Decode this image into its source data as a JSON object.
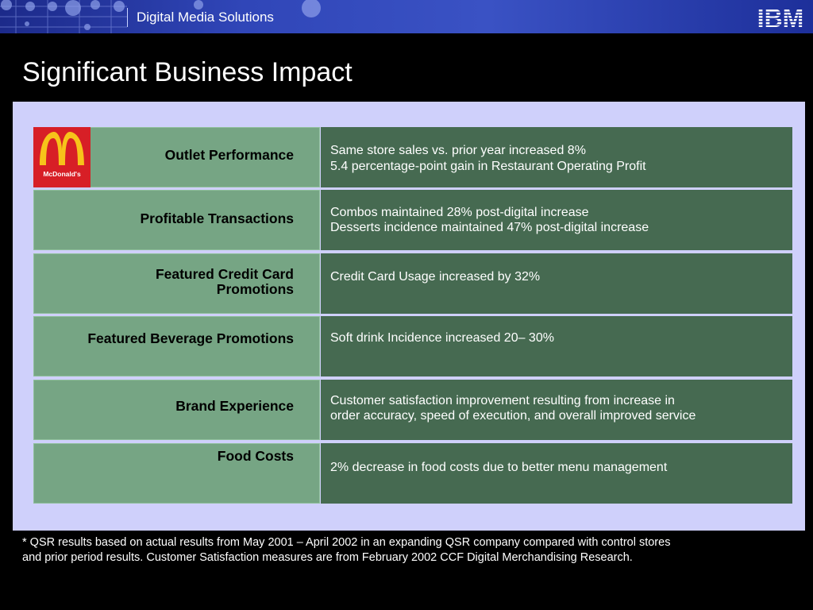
{
  "header": {
    "brand": "Digital Media Solutions",
    "logo_text": "IBM"
  },
  "slide": {
    "title": "Significant Business Impact"
  },
  "rows": [
    {
      "label": [
        "Outlet Performance"
      ],
      "desc": [
        "Same store sales vs. prior year increased 8%",
        "5.4 percentage-point gain in Restaurant Operating Profit"
      ]
    },
    {
      "label": [
        "Profitable Transactions"
      ],
      "desc": [
        "Combos maintained 28% post-digital increase",
        "Desserts incidence maintained 47% post-digital increase"
      ]
    },
    {
      "label": [
        "Featured Credit Card",
        "Promotions"
      ],
      "desc": [
        "Credit Card Usage increased by 32%"
      ]
    },
    {
      "label": [
        "Featured Beverage Promotions"
      ],
      "desc": [
        "Soft drink Incidence increased 20– 30%"
      ]
    },
    {
      "label": [
        "Brand Experience"
      ],
      "desc": [
        "Customer satisfaction improvement resulting from increase in",
        "order accuracy, speed of execution, and overall improved service"
      ]
    },
    {
      "label": [
        "Food Costs"
      ],
      "desc": [
        "2% decrease in food costs due to better menu management"
      ]
    }
  ],
  "mcdonalds_logo_text": "McDonald's",
  "footnote": [
    "*  QSR results based on actual results from May 2001 – April 2002 in an expanding QSR company  compared with control stores",
    "and prior period results.  Customer Satisfaction measures are from February 2002 CCF Digital Merchandising Research."
  ],
  "colors": {
    "banner": "#3046b8",
    "panel": "#cfd0fb",
    "label_cell": "#76a584",
    "desc_cell": "#466a51",
    "mcd_red": "#d71f26",
    "mcd_yellow": "#f7c31a"
  }
}
